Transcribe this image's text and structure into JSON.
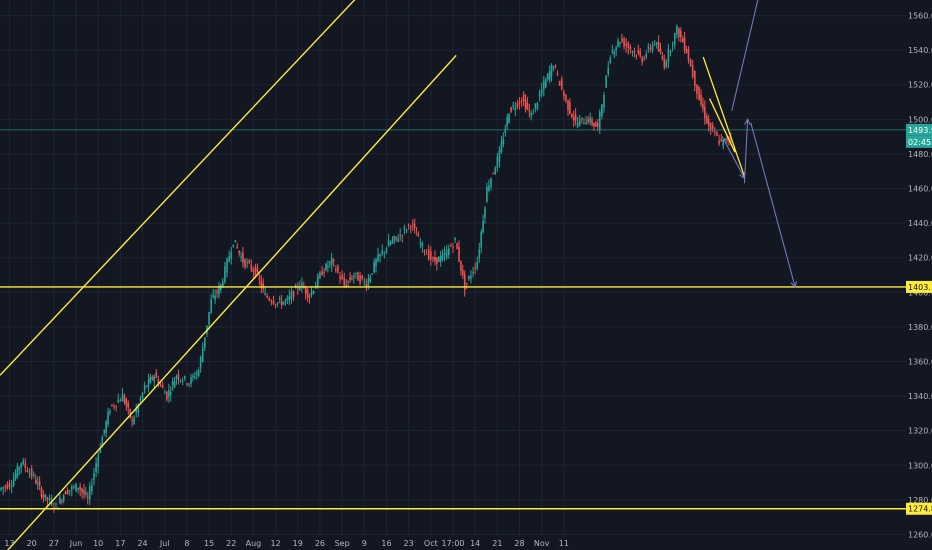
{
  "chart_data": {
    "type": "candlestick",
    "y_ticks": [
      "1560.000",
      "1540.000",
      "1520.000",
      "1500.000",
      "1480.000",
      "1460.000",
      "1440.000",
      "1420.000",
      "1400.000",
      "1380.000",
      "1360.000",
      "1340.000",
      "1320.000",
      "1300.000",
      "1280.000",
      "1260.000"
    ],
    "x_ticks": [
      "13",
      "20",
      "27",
      "Jun",
      "10",
      "17",
      "24",
      "Jul",
      "8",
      "15",
      "22",
      "Aug",
      "12",
      "19",
      "26",
      "Sep",
      "9",
      "16",
      "23",
      "Oct",
      "17:00",
      "14",
      "21",
      "28",
      "Nov",
      "11"
    ],
    "ylim": [
      1251,
      1569
    ],
    "price_labels": {
      "current": "1493.923",
      "countdown": "02:45:34",
      "support_upper": "1403.102",
      "support_lower": "1274.855"
    },
    "horizontal_levels": [
      1403.102,
      1274.855
    ],
    "current_price": 1493.923,
    "trend_channel": {
      "upper_line": [
        [
          "2019-05-10",
          1352
        ],
        [
          "2019-09-02",
          1575
        ]
      ],
      "lower_line": [
        [
          "2019-05-12",
          1250
        ],
        [
          "2019-10-01",
          1537
        ]
      ]
    },
    "price_path": [
      [
        "2019-05-10",
        1286
      ],
      [
        "2019-05-14",
        1290
      ],
      [
        "2019-05-17",
        1302
      ],
      [
        "2019-05-21",
        1293
      ],
      [
        "2019-05-24",
        1282
      ],
      [
        "2019-05-28",
        1276
      ],
      [
        "2019-05-31",
        1285
      ],
      [
        "2019-06-04",
        1288
      ],
      [
        "2019-06-07",
        1280
      ],
      [
        "2019-06-11",
        1312
      ],
      [
        "2019-06-14",
        1333
      ],
      [
        "2019-06-18",
        1340
      ],
      [
        "2019-06-21",
        1325
      ],
      [
        "2019-06-25",
        1345
      ],
      [
        "2019-06-28",
        1352
      ],
      [
        "2019-07-02",
        1340
      ],
      [
        "2019-07-05",
        1352
      ],
      [
        "2019-07-09",
        1348
      ],
      [
        "2019-07-12",
        1355
      ],
      [
        "2019-07-16",
        1395
      ],
      [
        "2019-07-19",
        1404
      ],
      [
        "2019-07-23",
        1430
      ],
      [
        "2019-07-26",
        1418
      ],
      [
        "2019-07-30",
        1412
      ],
      [
        "2019-08-02",
        1398
      ],
      [
        "2019-08-06",
        1394
      ],
      [
        "2019-08-09",
        1395
      ],
      [
        "2019-08-13",
        1405
      ],
      [
        "2019-08-16",
        1398
      ],
      [
        "2019-08-20",
        1412
      ],
      [
        "2019-08-23",
        1418
      ],
      [
        "2019-08-27",
        1404
      ],
      [
        "2019-08-30",
        1410
      ],
      [
        "2019-09-03",
        1405
      ],
      [
        "2019-09-06",
        1418
      ],
      [
        "2019-09-10",
        1428
      ],
      [
        "2019-09-13",
        1432
      ],
      [
        "2019-09-17",
        1440
      ],
      [
        "2019-09-20",
        1428
      ],
      [
        "2019-09-24",
        1418
      ],
      [
        "2019-09-27",
        1420
      ],
      [
        "2019-10-01",
        1430
      ],
      [
        "2019-10-04",
        1403
      ],
      [
        "2019-10-08",
        1418
      ],
      [
        "2019-10-11",
        1460
      ],
      [
        "2019-10-15",
        1480
      ],
      [
        "2019-10-18",
        1505
      ],
      [
        "2019-10-22",
        1512
      ],
      [
        "2019-10-25",
        1502
      ],
      [
        "2019-10-29",
        1520
      ],
      [
        "2019-11-01",
        1532
      ],
      [
        "2019-11-05",
        1510
      ],
      [
        "2019-11-08",
        1498
      ],
      [
        "2019-11-12",
        1500
      ],
      [
        "2019-11-15",
        1495
      ],
      [
        "2019-11-19",
        1538
      ],
      [
        "2019-11-22",
        1546
      ],
      [
        "2019-11-26",
        1540
      ],
      [
        "2019-11-29",
        1535
      ],
      [
        "2019-12-03",
        1545
      ],
      [
        "2019-12-06",
        1532
      ],
      [
        "2019-12-10",
        1552
      ],
      [
        "2019-12-13",
        1540
      ],
      [
        "2019-12-17",
        1512
      ],
      [
        "2019-12-20",
        1496
      ],
      [
        "2019-12-24",
        1486
      ],
      [
        "2019-12-27",
        1490
      ]
    ],
    "projection_arrows": [
      {
        "from": [
          "2019-12-24",
          1490
        ],
        "to": [
          "2019-12-31",
          1466
        ]
      },
      {
        "from": [
          "2019-12-31",
          1463
        ],
        "to": [
          "2020-01-01",
          1500
        ]
      },
      {
        "from": [
          "2020-01-02",
          1498
        ],
        "to": [
          "2020-01-16",
          1403
        ]
      },
      {
        "from": [
          "2019-12-27",
          1505
        ],
        "to": [
          "2020-01-05",
          1575
        ]
      }
    ],
    "falling_wedge": {
      "top": [
        [
          "2019-12-18",
          1536
        ],
        [
          "2019-12-31",
          1467
        ]
      ],
      "bottom": [
        [
          "2019-12-20",
          1512
        ],
        [
          "2019-12-28",
          1481
        ]
      ]
    },
    "colors": {
      "background": "#131722",
      "grid": "#1f2433",
      "up": "#26a69a",
      "down": "#ef5350",
      "channel": "#ffeb3b",
      "projection": "#7b80c4",
      "current_price_line": "#26a69a",
      "axis_text": "#b2b5be"
    }
  }
}
